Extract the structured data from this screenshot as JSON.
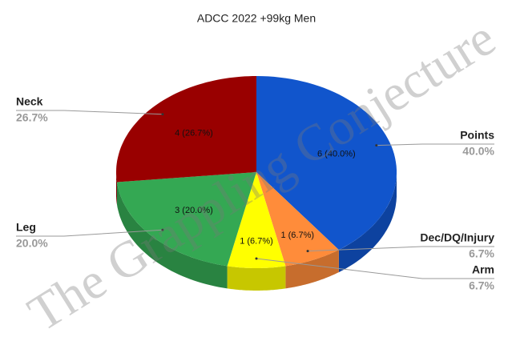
{
  "chart_data": {
    "type": "pie",
    "title": "ADCC 2022 +99kg Men",
    "categories": [
      "Points",
      "Dec/DQ/Injury",
      "Arm",
      "Leg",
      "Neck"
    ],
    "values": [
      6,
      1,
      1,
      3,
      4
    ],
    "value_labels": [
      "6 (40.0%)",
      "1 (6.7%)",
      "1 (6.7%)",
      "3 (20.0%)",
      "4 (26.7%)"
    ],
    "percent_labels": [
      "40.0%",
      "6.7%",
      "6.7%",
      "20.0%",
      "26.7%"
    ],
    "colors": [
      "#1155cc",
      "#ff8c3a",
      "#ffff00",
      "#34a853",
      "#990000"
    ],
    "watermark": "The Grappling Conjecture"
  }
}
